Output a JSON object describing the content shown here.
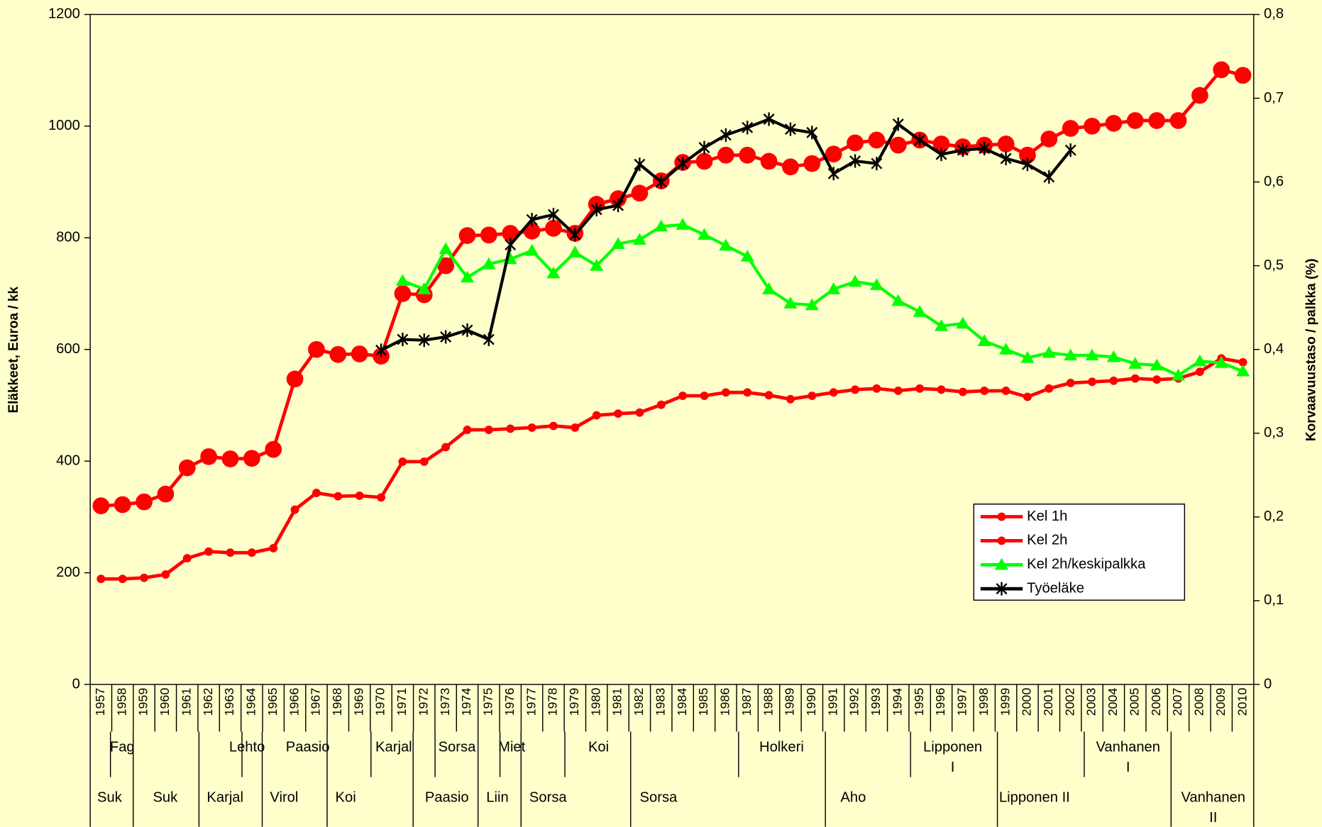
{
  "chart_data": {
    "type": "line",
    "y_label": "Eläkkeet, Euroa / kk",
    "y2_label": "Korvaavuustaso / palkka (%)",
    "categories": [
      "1957",
      "1958",
      "1959",
      "1960",
      "1961",
      "1962",
      "1963",
      "1964",
      "1965",
      "1966",
      "1967",
      "1968",
      "1969",
      "1970",
      "1971",
      "1972",
      "1973",
      "1974",
      "1975",
      "1976",
      "1977",
      "1978",
      "1979",
      "1980",
      "1981",
      "1982",
      "1983",
      "1984",
      "1985",
      "1986",
      "1987",
      "1988",
      "1989",
      "1990",
      "1991",
      "1992",
      "1993",
      "1994",
      "1995",
      "1996",
      "1997",
      "1998",
      "1999",
      "2000",
      "2001",
      "2002",
      "2003",
      "2004",
      "2005",
      "2006",
      "2007",
      "2008",
      "2009",
      "2010"
    ],
    "ylim": [
      0,
      1200
    ],
    "yticks": [
      0,
      200,
      400,
      600,
      800,
      1000,
      1200
    ],
    "y2lim": [
      0,
      0.8
    ],
    "y2ticks": [
      0,
      {
        "value": 0.1,
        "label": "0,1"
      },
      {
        "value": 0.2,
        "label": "0,2"
      },
      {
        "value": 0.3,
        "label": "0,3"
      },
      {
        "value": 0.4,
        "label": "0,4"
      },
      {
        "value": 0.5,
        "label": "0,5"
      },
      {
        "value": 0.6,
        "label": "0,6"
      },
      {
        "value": 0.7,
        "label": "0,7"
      },
      {
        "value": 0.8,
        "label": "0,8"
      }
    ],
    "legend": "right",
    "series": [
      {
        "name": "Kel 1h",
        "color": "#ff0000",
        "marker": "large-circle",
        "values": [
          320,
          322,
          327,
          341,
          388,
          408,
          404,
          405,
          421,
          547,
          600,
          591,
          592,
          588,
          700,
          698,
          750,
          804,
          805,
          808,
          812,
          817,
          808,
          860,
          870,
          880,
          902,
          935,
          937,
          948,
          948,
          937,
          927,
          933,
          950,
          970,
          975,
          966,
          975,
          968,
          963,
          966,
          968,
          948,
          977,
          996,
          1000,
          1005,
          1010,
          1010,
          1010,
          1055,
          1101,
          1091
        ]
      },
      {
        "name": "Kel 2h",
        "color": "#ff0000",
        "marker": "circle",
        "values": [
          189,
          189,
          191,
          197,
          226,
          238,
          236,
          236,
          244,
          313,
          343,
          337,
          338,
          335,
          399,
          399,
          425,
          456,
          456,
          458,
          460,
          463,
          460,
          482,
          485,
          487,
          501,
          517,
          517,
          523,
          523,
          518,
          511,
          517,
          523,
          528,
          530,
          526,
          530,
          528,
          524,
          526,
          526,
          515,
          530,
          540,
          542,
          544,
          548,
          546,
          548,
          560,
          584,
          577
        ]
      },
      {
        "name": "Kel 2h/keskipalkka",
        "color": "#00ff00",
        "marker": "triangle",
        "axis": "y2",
        "values": [
          null,
          null,
          null,
          null,
          null,
          null,
          null,
          null,
          null,
          null,
          null,
          null,
          null,
          null,
          0.482,
          0.472,
          0.52,
          0.486,
          0.502,
          0.508,
          0.518,
          0.491,
          0.516,
          0.5,
          0.526,
          0.531,
          0.547,
          0.549,
          0.537,
          0.524,
          0.511,
          0.472,
          0.455,
          0.453,
          0.472,
          0.481,
          0.477,
          0.458,
          0.445,
          0.428,
          0.431,
          0.41,
          0.4,
          0.39,
          0.396,
          0.393,
          0.393,
          0.391,
          0.383,
          0.381,
          0.369,
          0.386,
          0.384,
          0.374
        ]
      },
      {
        "name": "Työeläke",
        "color": "#000000",
        "marker": "star",
        "axis": "y2",
        "values": [
          null,
          null,
          null,
          null,
          null,
          null,
          null,
          null,
          null,
          null,
          null,
          null,
          null,
          0.399,
          0.412,
          0.411,
          0.415,
          0.423,
          0.412,
          0.525,
          0.555,
          0.561,
          0.537,
          0.567,
          0.572,
          0.621,
          0.6,
          0.622,
          0.641,
          0.656,
          0.665,
          0.675,
          0.663,
          0.659,
          0.61,
          0.625,
          0.622,
          0.669,
          0.65,
          0.633,
          0.638,
          0.64,
          0.628,
          0.621,
          0.606,
          0.638,
          null,
          null,
          null,
          null,
          null,
          null,
          null,
          null
        ]
      }
    ],
    "governments_upper": [
      [
        "Fag"
      ],
      [
        "Lehto"
      ],
      [
        "Paasio"
      ],
      [
        "Karjal"
      ],
      [
        "Sorsa"
      ],
      [
        "Miet"
      ],
      [
        "Koi"
      ],
      [
        "Holkeri"
      ],
      [
        "Lipponen",
        "I"
      ],
      [
        "Vanhanen",
        "I"
      ]
    ],
    "governments_lower": [
      [
        "Suk"
      ],
      [
        "Suk"
      ],
      [
        "Karjal"
      ],
      [
        "Virol"
      ],
      [
        "Koi"
      ],
      [
        "Paasio"
      ],
      [
        "Liin"
      ],
      [
        "Sorsa"
      ],
      [
        "Sorsa"
      ],
      [
        "Aho"
      ],
      [
        "Lipponen II"
      ],
      [
        "Vanhanen",
        "II"
      ]
    ]
  }
}
